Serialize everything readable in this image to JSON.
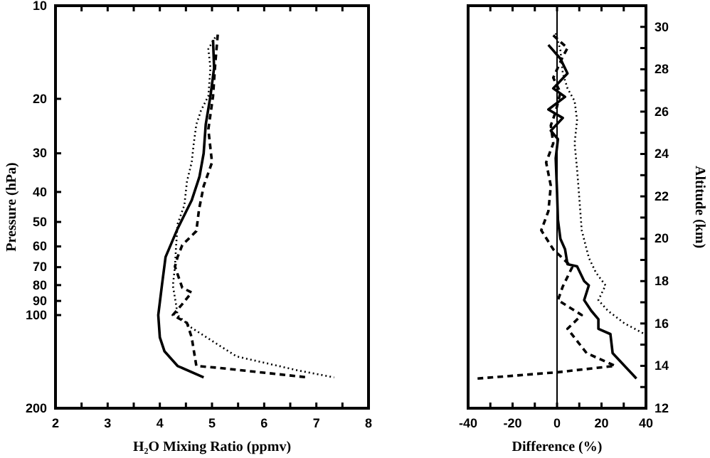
{
  "chart_data": [
    {
      "type": "line",
      "xlabel": "H₂O Mixing Ratio (ppmv)",
      "ylabel": "Pressure (hPa)",
      "log": "y",
      "xlim": [
        2,
        8
      ],
      "xticks": [
        2,
        {
          "value": 2.5,
          "label": null
        },
        3,
        {
          "value": 3.5,
          "label": null
        },
        4,
        {
          "value": 4.5,
          "label": null
        },
        5,
        {
          "value": 5.5,
          "label": null
        },
        6,
        {
          "value": 6.5,
          "label": null
        },
        7,
        {
          "value": 7.5,
          "label": null
        },
        8
      ],
      "ylim": [
        200,
        10
      ],
      "yticks": [
        10,
        20,
        30,
        40,
        50,
        60,
        70,
        80,
        90,
        100,
        200
      ],
      "series": [
        {
          "color": "#000000",
          "line_style": "solid",
          "x": [
            5.02,
            5.04,
            4.97,
            4.88,
            4.84,
            4.76,
            4.61,
            4.34,
            4.11,
            4.04,
            3.97,
            4.0,
            4.09,
            4.34,
            4.84
          ],
          "values": [
            12.9,
            15.9,
            19.6,
            24.2,
            30,
            35.7,
            42.6,
            52.6,
            64.9,
            80.2,
            100,
            118,
            131,
            146,
            159
          ]
        },
        {
          "color": "#000000",
          "line_style": "dashed",
          "x": [
            5.11,
            5.06,
            5.02,
            4.93,
            5.0,
            4.84,
            4.75,
            4.7,
            4.43,
            4.34,
            4.29,
            4.43,
            4.61,
            4.43,
            4.25,
            4.52,
            4.61,
            4.7,
            5.11,
            6.84
          ],
          "values": [
            12.4,
            15.6,
            19.6,
            25.1,
            32.1,
            38.3,
            45.7,
            53.5,
            59.4,
            64.9,
            69.7,
            81.6,
            84.5,
            92.2,
            100,
            106,
            118,
            146,
            148,
            159
          ]
        },
        {
          "color": "#000000",
          "line_style": "dotted",
          "x": [
            5.06,
            4.93,
            4.97,
            4.93,
            4.79,
            4.7,
            4.65,
            4.61,
            4.52,
            4.47,
            4.34,
            4.31,
            4.29,
            4.25,
            4.31,
            4.34,
            4.61,
            5.47,
            6.65,
            7.34
          ],
          "values": [
            12.66,
            13.8,
            15.9,
            19.6,
            21.8,
            24.2,
            27.9,
            32.1,
            37.0,
            44.1,
            50.8,
            60.5,
            69.7,
            80.2,
            92.2,
            100,
            110,
            136,
            151,
            159
          ]
        }
      ]
    },
    {
      "type": "line",
      "xlabel": "Difference (%)",
      "y2label": "Altitude (km)",
      "xlim": [
        -40,
        40
      ],
      "xticks": [
        -40,
        {
          "value": -30,
          "label": null
        },
        -20,
        {
          "value": -10,
          "label": null
        },
        0,
        {
          "value": 10,
          "label": null
        },
        20,
        {
          "value": 30,
          "label": null
        },
        40
      ],
      "y2lim": [
        12,
        31
      ],
      "y2ticks": [
        12,
        {
          "value": 13,
          "label": null
        },
        14,
        {
          "value": 15,
          "label": null
        },
        16,
        {
          "value": 17,
          "label": null
        },
        18,
        {
          "value": 19,
          "label": null
        },
        20,
        {
          "value": 21,
          "label": null
        },
        22,
        {
          "value": 23,
          "label": null
        },
        24,
        {
          "value": 25,
          "label": null
        },
        26,
        {
          "value": 27,
          "label": null
        },
        28,
        {
          "value": 29,
          "label": null
        },
        30
      ],
      "ref_lines": [
        {
          "axis": "x",
          "value": 0,
          "color": "#000000"
        }
      ],
      "series": [
        {
          "color": "#000000",
          "line_style": "solid",
          "axis": "y2",
          "x": [
            -3.9,
            1.5,
            4.7,
            -1.7,
            3.6,
            -3.9,
            2.6,
            -2.8,
            0.4,
            -0.6,
            0,
            0.4,
            1.5,
            3.6,
            4.7,
            9.0,
            12.2,
            14.3,
            12.2,
            15.4,
            18.6,
            18.6,
            24.0,
            25.0,
            35.7
          ],
          "values": [
            29.15,
            28.5,
            27.8,
            27.1,
            26.7,
            26.1,
            25.7,
            25.1,
            24.7,
            23.8,
            22.2,
            20.9,
            20.0,
            19.5,
            18.8,
            18.7,
            18.0,
            17.8,
            17.1,
            16.6,
            16.2,
            15.75,
            15.5,
            14.6,
            13.4
          ]
        },
        {
          "color": "#000000",
          "line_style": "dashed",
          "axis": "y2",
          "x": [
            -1.7,
            4.7,
            2.6,
            -1.7,
            1.5,
            -0.6,
            -2.8,
            -1.7,
            -4.9,
            -2.8,
            -3.9,
            -7.1,
            -1.7,
            6.8,
            2.6,
            0.4,
            11.1,
            4.7,
            13.3,
            26.1,
            0.4,
            -35.9
          ],
          "values": [
            29.6,
            29.0,
            28.6,
            27.6,
            26.9,
            26.0,
            25.35,
            24.5,
            23.6,
            22.5,
            21.3,
            20.4,
            19.5,
            18.65,
            17.75,
            17.1,
            16.4,
            15.75,
            14.6,
            14.0,
            13.7,
            13.4
          ]
        },
        {
          "color": "#000000",
          "line_style": "dotted",
          "axis": "y2",
          "x": [
            -0.6,
            1.5,
            2.6,
            4.7,
            7.9,
            9.0,
            7.9,
            9.0,
            10.1,
            11.1,
            14.3,
            17.5,
            21.8,
            18.6,
            22.9,
            30.4,
            39.4
          ],
          "values": [
            29.7,
            28.9,
            27.8,
            27.1,
            26.5,
            25.6,
            24.5,
            23.3,
            21.8,
            20.4,
            19.1,
            18.4,
            17.8,
            17.1,
            16.6,
            16.0,
            15.5
          ]
        }
      ]
    }
  ]
}
